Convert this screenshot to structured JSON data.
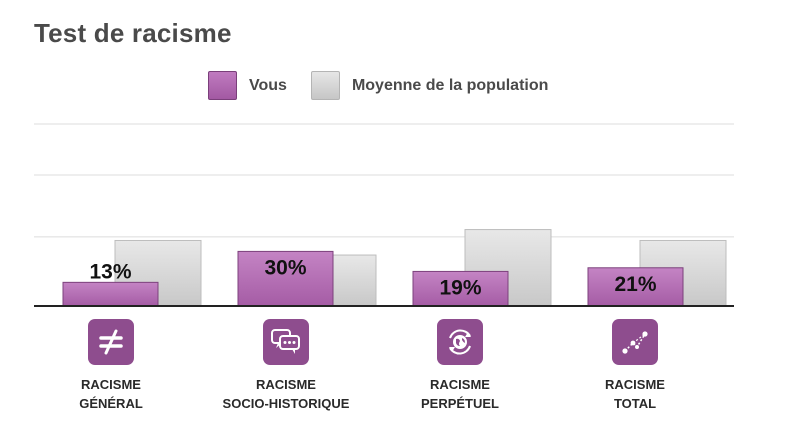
{
  "title": "Test de racisme",
  "legend": {
    "you": "Vous",
    "average": "Moyenne de la population"
  },
  "colors": {
    "you": "#b46db4",
    "average": "#d4d4d4",
    "icon_bg": "#8e4d8e"
  },
  "categories": [
    {
      "line1": "RACISME",
      "line2": "GÉNÉRAL",
      "icon": "not-equal-icon"
    },
    {
      "line1": "RACISME",
      "line2": "SOCIO-HISTORIQUE",
      "icon": "speech-bubbles-icon"
    },
    {
      "line1": "RACISME",
      "line2": "PERPÉTUEL",
      "icon": "globe-cycle-icon"
    },
    {
      "line1": "RACISME",
      "line2": "TOTAL",
      "icon": "network-nodes-icon"
    }
  ],
  "chart_data": {
    "type": "bar",
    "title": "Test de racisme",
    "categories": [
      "RACISME GÉNÉRAL",
      "RACISME SOCIO-HISTORIQUE",
      "RACISME PERPÉTUEL",
      "RACISME TOTAL"
    ],
    "series": [
      {
        "name": "Vous",
        "values": [
          13,
          30,
          19,
          21
        ],
        "labels": [
          "13%",
          "30%",
          "19%",
          "21%"
        ]
      },
      {
        "name": "Moyenne de la population",
        "values": [
          36,
          28,
          42,
          36
        ]
      }
    ],
    "ylim": [
      0,
      100
    ],
    "grid": true,
    "legend_position": "top"
  }
}
